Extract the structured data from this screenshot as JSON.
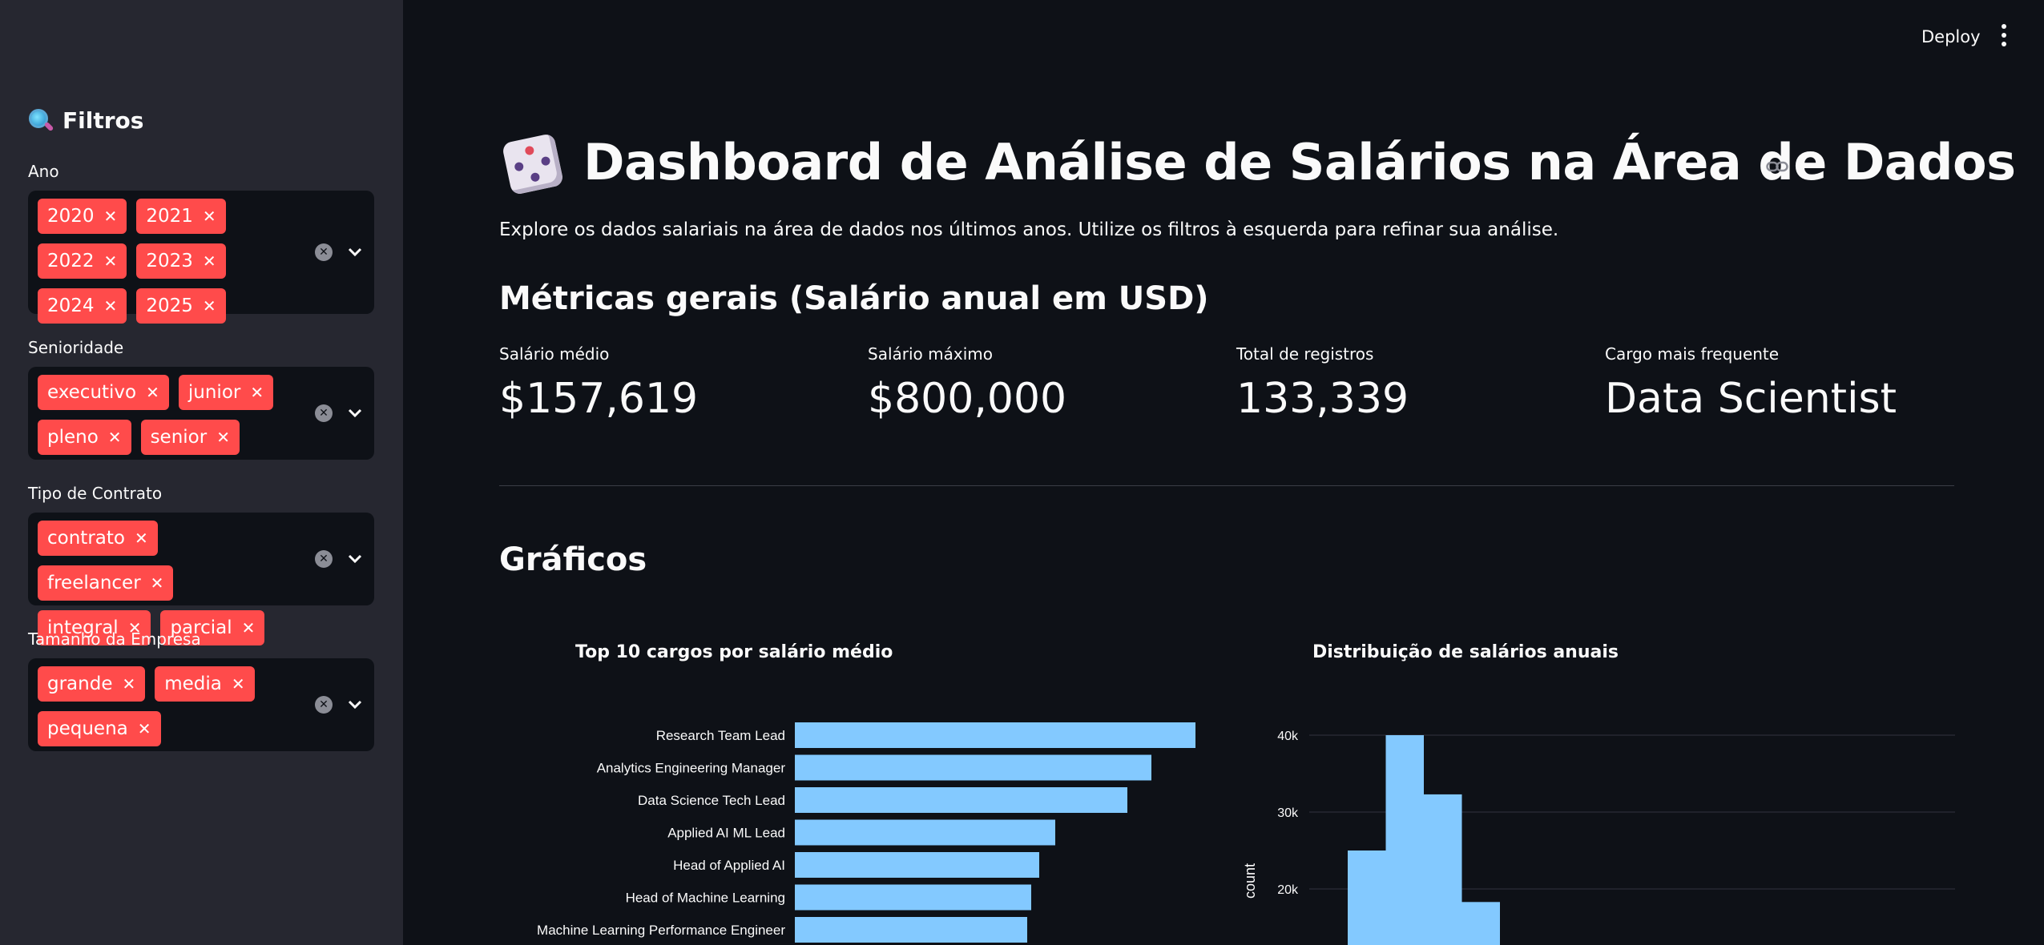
{
  "topbar": {
    "deploy_label": "Deploy"
  },
  "sidebar": {
    "title": "Filtros",
    "filters": [
      {
        "label": "Ano",
        "chips": [
          "2020",
          "2021",
          "2022",
          "2023",
          "2024",
          "2025"
        ]
      },
      {
        "label": "Senioridade",
        "chips": [
          "executivo",
          "junior",
          "pleno",
          "senior"
        ]
      },
      {
        "label": "Tipo de Contrato",
        "chips": [
          "contrato",
          "freelancer",
          "integral",
          "parcial"
        ]
      },
      {
        "label": "Tamanho da Empresa",
        "chips": [
          "grande",
          "media",
          "pequena"
        ]
      }
    ]
  },
  "main": {
    "title": "Dashboard de Análise de Salários na Área de Dados",
    "description": "Explore os dados salariais na área de dados nos últimos anos. Utilize os filtros à esquerda para refinar sua análise.",
    "metrics_heading": "Métricas gerais (Salário anual em USD)",
    "metrics": [
      {
        "label": "Salário médio",
        "value": "$157,619"
      },
      {
        "label": "Salário máximo",
        "value": "$800,000"
      },
      {
        "label": "Total de registros",
        "value": "133,339"
      },
      {
        "label": "Cargo mais frequente",
        "value": "Data Scientist"
      }
    ],
    "charts_heading": "Gráficos"
  },
  "colors": {
    "accent": "#ff4b4b",
    "bar": "#83c9ff",
    "sidebar_bg": "#262730",
    "main_bg": "#0e1117"
  },
  "chart_data": [
    {
      "type": "bar",
      "orientation": "horizontal",
      "title": "Top 10 cargos por salário médio",
      "categories": [
        "Research Team Lead",
        "Analytics Engineering Manager",
        "Data Science Tech Lead",
        "Applied AI ML Lead",
        "Head of Applied AI",
        "Head of Machine Learning",
        "Machine Learning Performance Engineer"
      ],
      "values": [
        100,
        89,
        83,
        65,
        61,
        59,
        58
      ],
      "color": "#83c9ff"
    },
    {
      "type": "bar",
      "subtype": "histogram",
      "title": "Distribuição de salários anuais",
      "ylabel": "count",
      "yticks": [
        "20k",
        "30k",
        "40k"
      ],
      "ytick_values": [
        20000,
        30000,
        40000
      ],
      "bins": [
        {
          "count": 25000
        },
        {
          "count": 40000
        },
        {
          "count": 32300
        },
        {
          "count": 18300
        }
      ],
      "color": "#83c9ff"
    }
  ]
}
